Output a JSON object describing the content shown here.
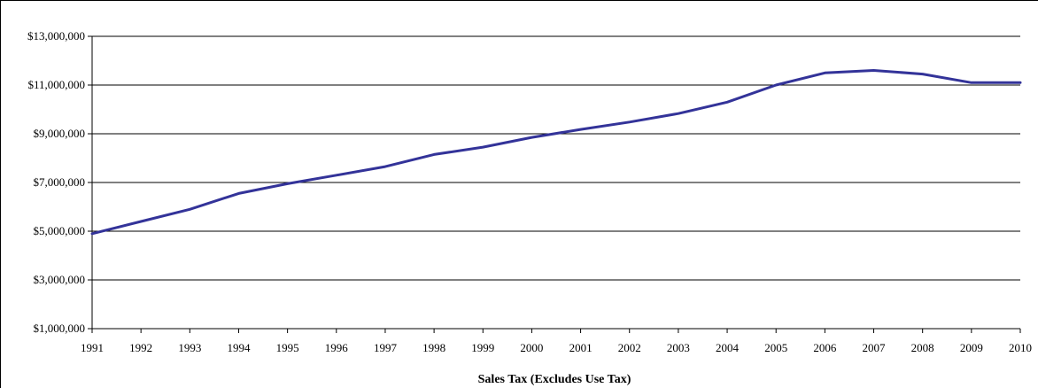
{
  "chart_data": {
    "type": "line",
    "title": "",
    "xlabel": "Sales Tax (Excludes Use Tax)",
    "ylabel": "",
    "categories": [
      "1991",
      "1992",
      "1993",
      "1994",
      "1995",
      "1996",
      "1997",
      "1998",
      "1999",
      "2000",
      "2001",
      "2002",
      "2003",
      "2004",
      "2005",
      "2006",
      "2007",
      "2008",
      "2009",
      "2010"
    ],
    "series": [
      {
        "color": "#333399",
        "values": [
          4900000,
          5400000,
          5900000,
          6550000,
          6950000,
          7300000,
          7650000,
          8150000,
          8450000,
          8850000,
          9180000,
          9480000,
          9830000,
          10300000,
          11000000,
          11500000,
          11600000,
          11450000,
          11100000,
          11100000
        ]
      }
    ],
    "ylim": [
      1000000,
      13000000
    ],
    "yticks": [
      1000000,
      3000000,
      5000000,
      7000000,
      9000000,
      11000000,
      13000000
    ],
    "ytick_labels": [
      "$1,000,000",
      "$3,000,000",
      "$5,000,000",
      "$7,000,000",
      "$9,000,000",
      "$11,000,000",
      "$13,000,000"
    ],
    "grid": true,
    "legend": "none"
  }
}
